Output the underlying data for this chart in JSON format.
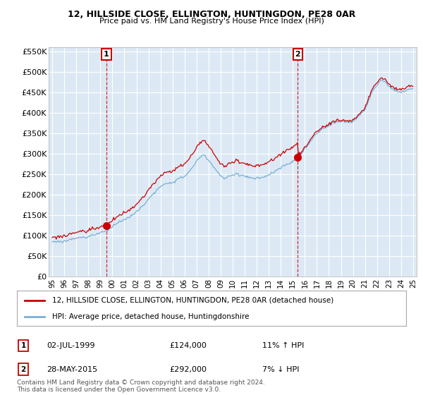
{
  "title": "12, HILLSIDE CLOSE, ELLINGTON, HUNTINGDON, PE28 0AR",
  "subtitle": "Price paid vs. HM Land Registry's House Price Index (HPI)",
  "legend_line1": "12, HILLSIDE CLOSE, ELLINGTON, HUNTINGDON, PE28 0AR (detached house)",
  "legend_line2": "HPI: Average price, detached house, Huntingdonshire",
  "footnote": "Contains HM Land Registry data © Crown copyright and database right 2024.\nThis data is licensed under the Open Government Licence v3.0.",
  "sale1_label": "1",
  "sale1_date": "02-JUL-1999",
  "sale1_price": "£124,000",
  "sale1_hpi": "11% ↑ HPI",
  "sale2_label": "2",
  "sale2_date": "28-MAY-2015",
  "sale2_price": "£292,000",
  "sale2_hpi": "7% ↓ HPI",
  "sale1_year": 1999.5,
  "sale1_value": 124000,
  "sale2_year": 2015.42,
  "sale2_value": 292000,
  "ylim": [
    0,
    560000
  ],
  "yticks": [
    0,
    50000,
    100000,
    150000,
    200000,
    250000,
    300000,
    350000,
    400000,
    450000,
    500000,
    550000
  ],
  "xlim_start": 1994.7,
  "xlim_end": 2025.3,
  "background_color": "#ffffff",
  "chart_bg_color": "#dce9f5",
  "grid_color": "#ffffff",
  "red_color": "#cc0000",
  "blue_color": "#7aafd4"
}
